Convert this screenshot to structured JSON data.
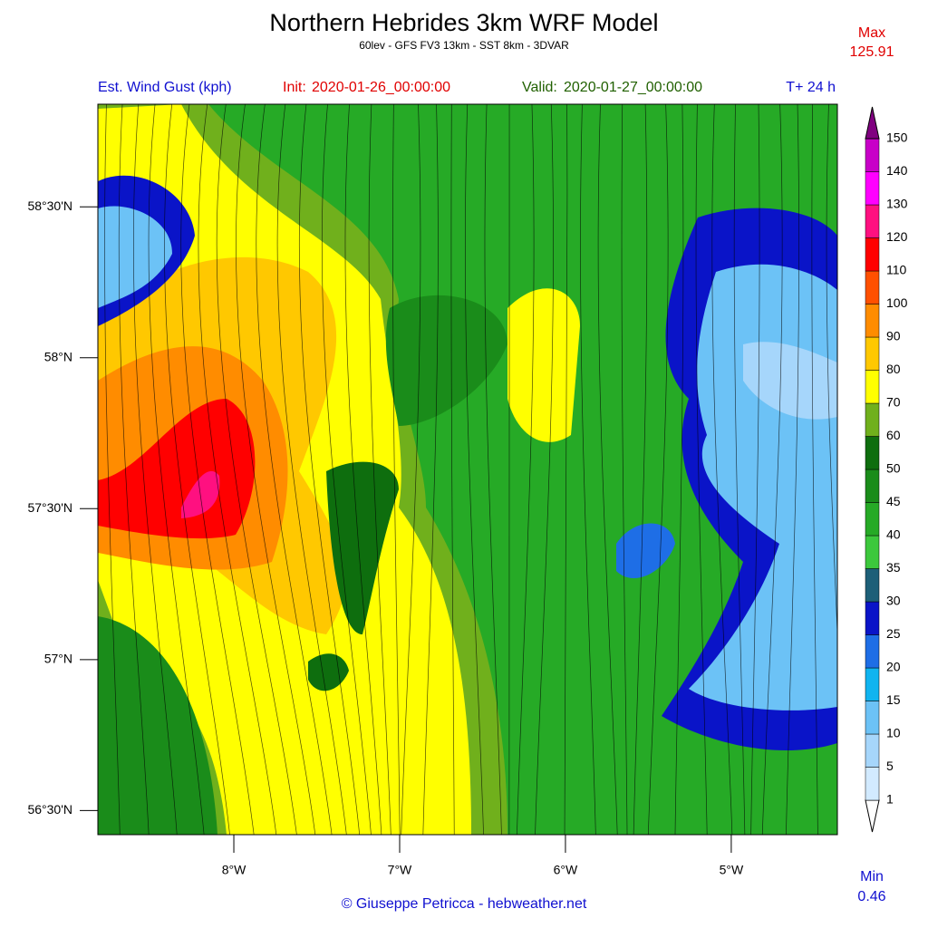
{
  "header": {
    "title": "Northern Hebrides 3km WRF Model",
    "subtitle": "60lev - GFS FV3 13km - SST 8km - 3DVAR",
    "max_label": "Max",
    "max_value": 125.91,
    "min_label": "Min",
    "min_value": 0.46
  },
  "info": {
    "field": "Est. Wind Gust (kph)",
    "init_label": "Init:",
    "init": "2020-01-26_00:00:00",
    "valid_label": "Valid:",
    "valid": "2020-01-27_00:00:00",
    "lead": "T+ 24 h"
  },
  "map": {
    "xlim": [
      -8.82,
      -4.36
    ],
    "ylim": [
      56.42,
      58.84
    ],
    "xticks": [
      {
        "value": -8,
        "label": "8°W"
      },
      {
        "value": -7,
        "label": "7°W"
      },
      {
        "value": -6,
        "label": "6°W"
      },
      {
        "value": -5,
        "label": "5°W"
      }
    ],
    "yticks": [
      {
        "value": 58.5,
        "label": "58°30'N"
      },
      {
        "value": 58,
        "label": "58°N"
      },
      {
        "value": 57.5,
        "label": "57°30'N"
      },
      {
        "value": 57,
        "label": "57°N"
      },
      {
        "value": 56.5,
        "label": "56°30'N"
      }
    ]
  },
  "legend": {
    "levels": [
      1,
      5,
      10,
      15,
      20,
      25,
      30,
      35,
      40,
      45,
      50,
      60,
      70,
      80,
      90,
      100,
      110,
      120,
      130,
      140,
      150
    ],
    "colors": [
      "#ffffff",
      "#d2eaff",
      "#a6d6fb",
      "#6cc2f6",
      "#10b4f0",
      "#1e6ee6",
      "#0a14c8",
      "#1d5f78",
      "#3cc83c",
      "#26aa26",
      "#1a8c1a",
      "#0e6e0e",
      "#70b01c",
      "#ffff00",
      "#ffc800",
      "#ff8c00",
      "#ff5000",
      "#ff0000",
      "#ff1080",
      "#ff00ff",
      "#c800c8",
      "#800080"
    ]
  },
  "footer": {
    "credit": "© Giuseppe Petricca - hebweather.net"
  }
}
